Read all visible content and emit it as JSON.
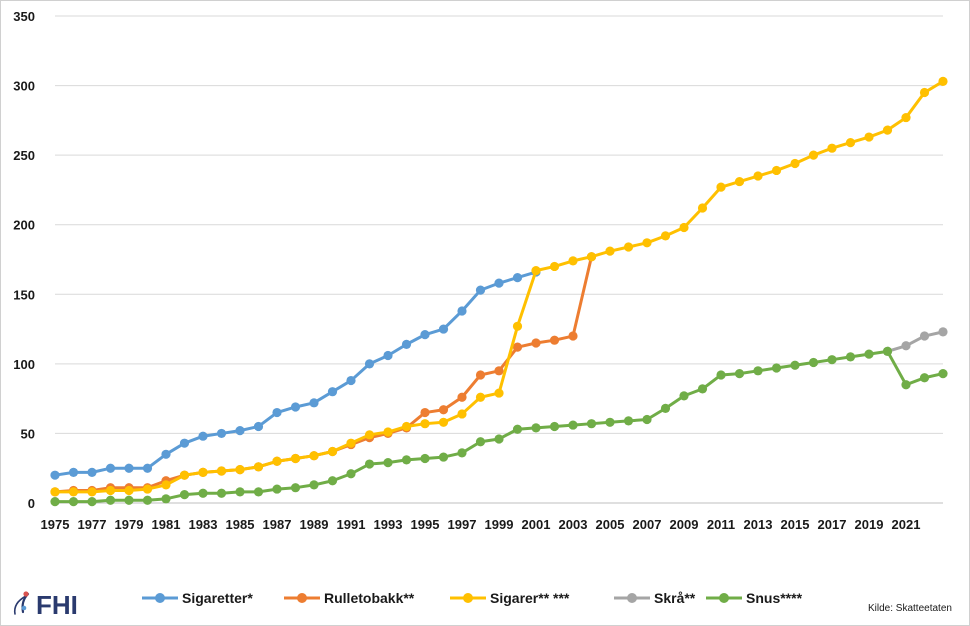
{
  "logo": {
    "text": "FHI"
  },
  "source": "Kilde: Skatteetaten",
  "chart_data": {
    "type": "line",
    "title": "",
    "xlabel": "",
    "ylabel": "",
    "ylim": [
      0,
      350
    ],
    "yticks": [
      0,
      50,
      100,
      150,
      200,
      250,
      300,
      350
    ],
    "x": [
      1975,
      1976,
      1977,
      1978,
      1979,
      1980,
      1981,
      1982,
      1983,
      1984,
      1985,
      1986,
      1987,
      1988,
      1989,
      1990,
      1991,
      1992,
      1993,
      1994,
      1995,
      1996,
      1997,
      1998,
      1999,
      2000,
      2001,
      2002,
      2003,
      2004,
      2005,
      2006,
      2007,
      2008,
      2009,
      2010,
      2011,
      2012,
      2013,
      2014,
      2015,
      2016,
      2017,
      2018,
      2019,
      2020,
      2021,
      2022,
      2023
    ],
    "xtick_labels": [
      "1975",
      "1977",
      "1979",
      "1981",
      "1983",
      "1985",
      "1987",
      "1989",
      "1991",
      "1993",
      "1995",
      "1997",
      "1999",
      "2001",
      "2003",
      "2005",
      "2007",
      "2009",
      "2011",
      "2013",
      "2015",
      "2017",
      "2019",
      "2021"
    ],
    "grid": "horizontal",
    "legend_position": "bottom",
    "series": [
      {
        "name": "Sigaretter*",
        "color": "#5b9bd5",
        "values": [
          20,
          22,
          22,
          25,
          25,
          25,
          35,
          43,
          48,
          50,
          52,
          55,
          65,
          69,
          72,
          80,
          88,
          100,
          106,
          114,
          121,
          125,
          138,
          153,
          158,
          162,
          166,
          null,
          null,
          null,
          null,
          null,
          null,
          null,
          null,
          null,
          null,
          null,
          null,
          null,
          null,
          null,
          null,
          null,
          null,
          null,
          null,
          null,
          null
        ]
      },
      {
        "name": "Rulletobakk**",
        "color": "#ed7d31",
        "values": [
          8,
          9,
          9,
          11,
          11,
          11,
          16,
          20,
          22,
          23,
          24,
          26,
          30,
          32,
          34,
          37,
          42,
          47,
          50,
          54,
          65,
          67,
          76,
          92,
          95,
          112,
          115,
          117,
          120,
          177,
          null,
          null,
          null,
          null,
          null,
          null,
          null,
          null,
          null,
          null,
          null,
          null,
          null,
          null,
          null,
          null,
          null,
          null,
          null
        ]
      },
      {
        "name": "Sigarer** ***",
        "color": "#ffc000",
        "values": [
          8,
          8,
          8,
          9,
          9,
          10,
          13,
          20,
          22,
          23,
          24,
          26,
          30,
          32,
          34,
          37,
          43,
          49,
          51,
          55,
          57,
          58,
          64,
          76,
          79,
          127,
          167,
          170,
          174,
          177,
          181,
          184,
          187,
          192,
          198,
          212,
          227,
          231,
          235,
          239,
          244,
          250,
          255,
          259,
          263,
          268,
          277,
          295,
          303
        ]
      },
      {
        "name": "Skrå**",
        "color": "#a5a5a5",
        "values": [
          null,
          null,
          null,
          null,
          null,
          null,
          null,
          null,
          null,
          null,
          null,
          null,
          null,
          null,
          null,
          null,
          null,
          null,
          null,
          null,
          null,
          null,
          null,
          null,
          null,
          null,
          null,
          null,
          null,
          null,
          null,
          null,
          null,
          null,
          null,
          null,
          null,
          null,
          null,
          null,
          null,
          null,
          null,
          null,
          null,
          109,
          113,
          120,
          123
        ]
      },
      {
        "name": "Snus****",
        "color": "#70ad47",
        "values": [
          1,
          1,
          1,
          2,
          2,
          2,
          3,
          6,
          7,
          7,
          8,
          8,
          10,
          11,
          13,
          16,
          21,
          28,
          29,
          31,
          32,
          33,
          36,
          44,
          46,
          53,
          54,
          55,
          56,
          57,
          58,
          59,
          60,
          68,
          77,
          82,
          92,
          93,
          95,
          97,
          99,
          101,
          103,
          105,
          107,
          109,
          85,
          90,
          93
        ]
      }
    ]
  }
}
